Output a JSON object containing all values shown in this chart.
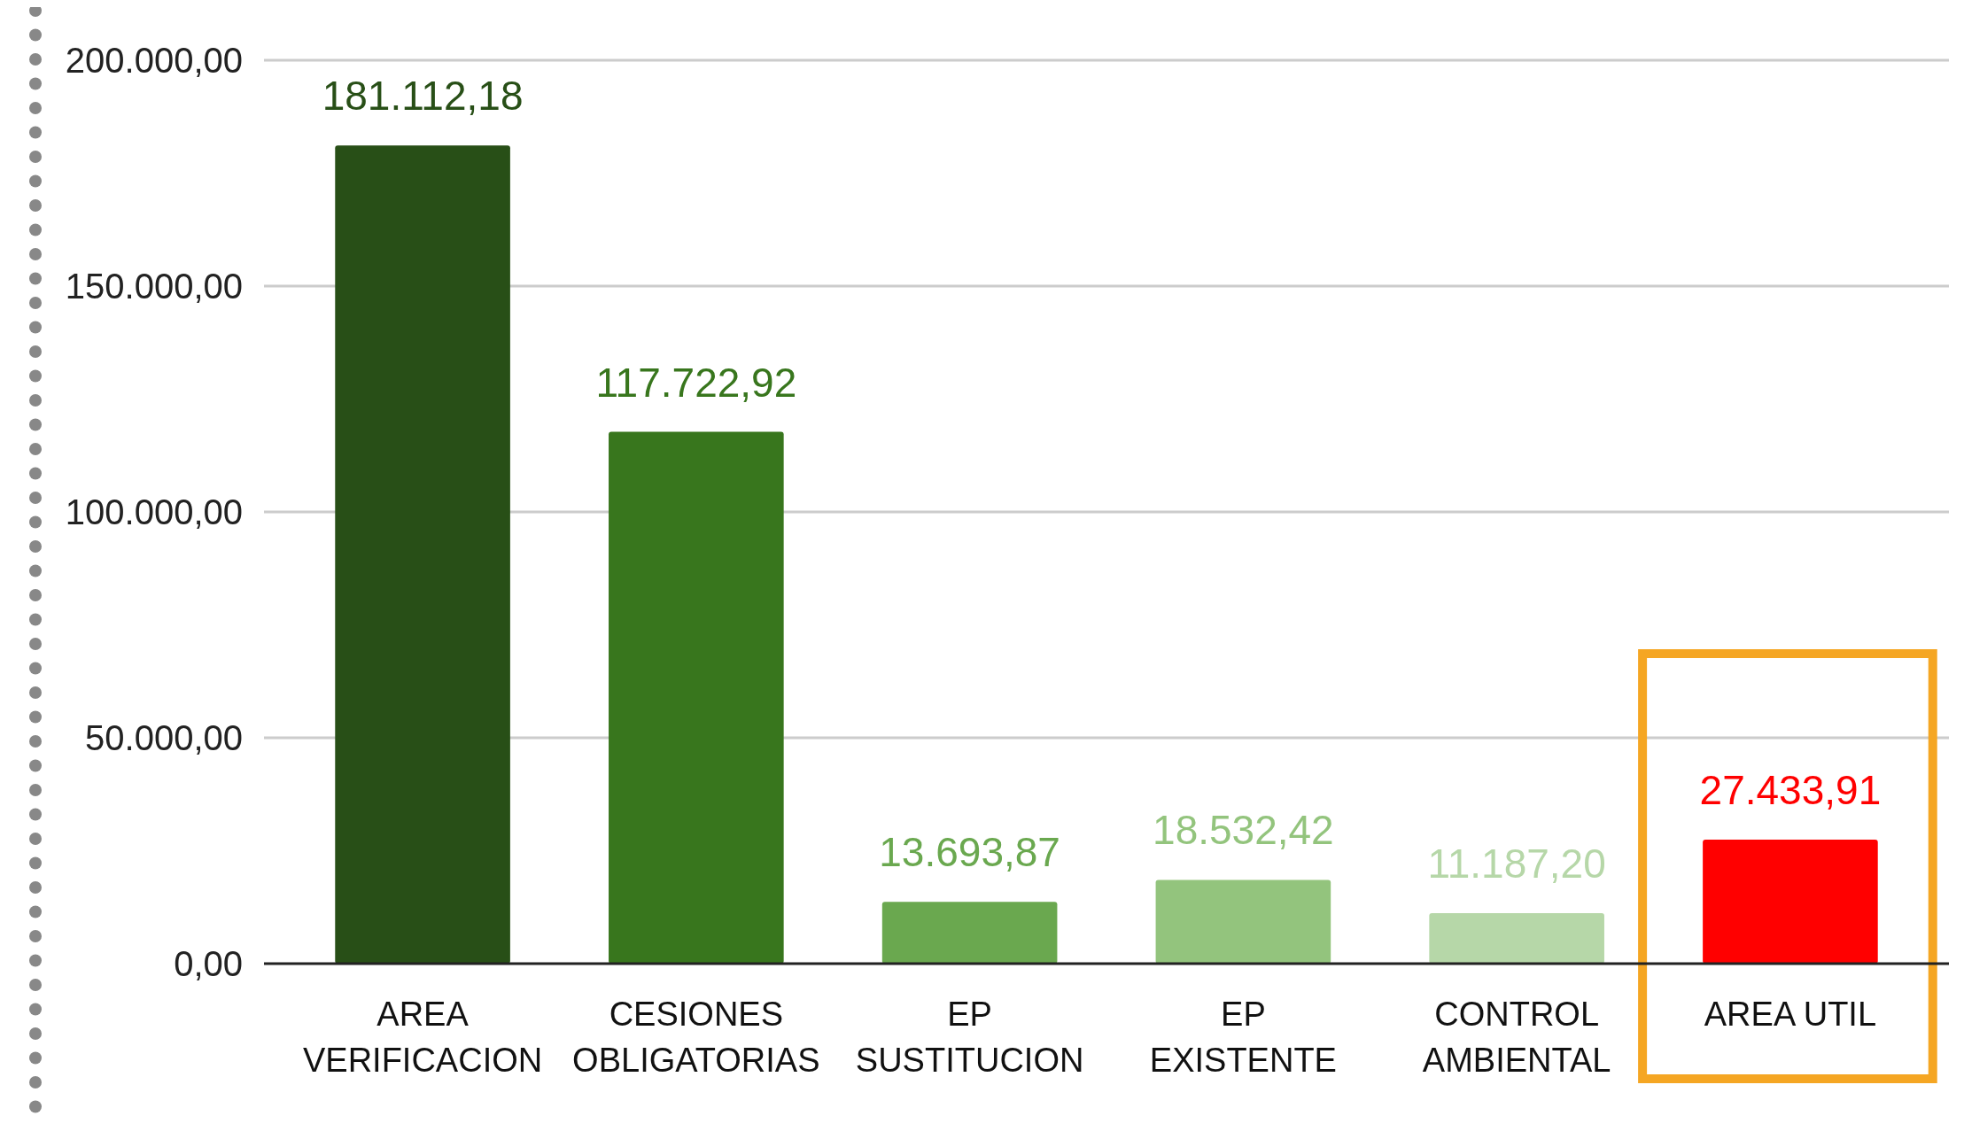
{
  "chart_data": {
    "type": "bar",
    "categories": [
      "AREA VERIFICACION",
      "CESIONES OBLIGATORIAS",
      "EP SUSTITUCION",
      "EP EXISTENTE",
      "CONTROL AMBIENTAL",
      "AREA UTIL"
    ],
    "values": [
      181112.18,
      117722.92,
      13693.87,
      18532.42,
      11187.2,
      27433.91
    ],
    "colors": [
      "#284f17",
      "#38761d",
      "#6aa84f",
      "#93c47d",
      "#b6d7a8",
      "#ff0000"
    ],
    "value_labels": [
      "181.112,18",
      "117.722,92",
      "13.693,87",
      "18.532,42",
      "11.187,20",
      "27.433,91"
    ],
    "ylim": [
      0,
      200000
    ],
    "yticks": [
      {
        "value": 0,
        "label": "0,00"
      },
      {
        "value": 50000,
        "label": "50.000,00"
      },
      {
        "value": 100000,
        "label": "100.000,00"
      },
      {
        "value": 150000,
        "label": "150.000,00"
      },
      {
        "value": 200000,
        "label": "200.000,00"
      }
    ],
    "bands": [
      {
        "axis": "x",
        "from": "AREA UTIL",
        "to": "AREA UTIL",
        "color": "#f5a623"
      }
    ],
    "grid": "y"
  }
}
